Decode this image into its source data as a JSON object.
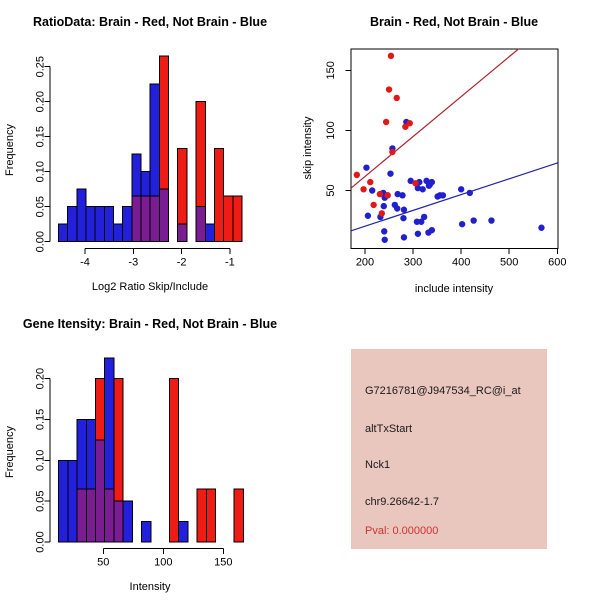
{
  "colors": {
    "background": "#FFFFFF",
    "bar_blue": "#2320DC",
    "bar_red": "#EE1C14",
    "bar_overlap_purple": "#7A1C92",
    "bar_border": "#000000",
    "point_blue": "#2020CC",
    "point_red": "#E01818",
    "line_red": "#B01F2E",
    "line_blue": "#2424A8",
    "axis": "#000000",
    "info_bg": "#E9C6BE",
    "info_text": "#1A1A1A",
    "pval_red": "#CC3333"
  },
  "chart_data": [
    {
      "id": "hist-ratio",
      "type": "bar",
      "title": "RatioData: Brain - Red, Not Brain - Blue",
      "xlabel": "Log2 Ratio Skip/Include",
      "ylabel": "Frequency",
      "x_ticks": [
        -4,
        -3,
        -2,
        -1
      ],
      "y_ticks": [
        "0.00",
        "0.05",
        "0.10",
        "0.15",
        "0.20",
        "0.25"
      ],
      "xlim": [
        -4.55,
        -0.75
      ],
      "ylim": [
        0,
        0.25
      ],
      "bin_start": -4.55,
      "bin_width": 0.19,
      "series": [
        {
          "name": "Not Brain (blue)",
          "values": [
            0.025,
            0.05,
            0.075,
            0.05,
            0.05,
            0.05,
            0.025,
            0.05,
            0.125,
            0.1,
            0.225,
            0.075,
            0,
            0.025,
            0,
            0.05,
            0.025,
            0,
            0,
            0
          ]
        },
        {
          "name": "Brain (red)",
          "values": [
            0,
            0,
            0,
            0,
            0,
            0,
            0,
            0,
            0.065,
            0.065,
            0.065,
            0.265,
            0,
            0.133,
            0,
            0.2,
            0,
            0.133,
            0.065,
            0.065
          ]
        }
      ],
      "note": "purple segments = overlap of red and blue histograms"
    },
    {
      "id": "scatter-intensity",
      "type": "scatter",
      "title": "Brain - Red, Not Brain - Blue",
      "xlabel": "include intensity",
      "ylabel": "skip intensity",
      "x_ticks": [
        200,
        300,
        400,
        500,
        600
      ],
      "y_ticks": [
        50,
        100,
        150
      ],
      "xlim": [
        171,
        601
      ],
      "ylim": [
        2,
        168
      ],
      "red_points": [
        [
          254,
          162
        ],
        [
          250,
          134
        ],
        [
          266,
          127
        ],
        [
          244,
          107
        ],
        [
          284,
          103
        ],
        [
          293,
          106
        ],
        [
          257,
          82
        ],
        [
          183,
          63
        ],
        [
          197,
          51
        ],
        [
          211,
          57
        ],
        [
          231,
          47
        ],
        [
          218,
          38
        ],
        [
          235,
          31
        ],
        [
          305,
          56
        ],
        [
          247,
          46
        ]
      ],
      "blue_points": [
        [
          203,
          69
        ],
        [
          253,
          64
        ],
        [
          286,
          107
        ],
        [
          257,
          85
        ],
        [
          215,
          50
        ],
        [
          238,
          48
        ],
        [
          241,
          44
        ],
        [
          247,
          46
        ],
        [
          268,
          47
        ],
        [
          278,
          46
        ],
        [
          239,
          37
        ],
        [
          267,
          35
        ],
        [
          281,
          34
        ],
        [
          206,
          29
        ],
        [
          310,
          52
        ],
        [
          320,
          51
        ],
        [
          333,
          54
        ],
        [
          356,
          46
        ],
        [
          295,
          58
        ],
        [
          313,
          57
        ],
        [
          328,
          58
        ],
        [
          335,
          55
        ],
        [
          262,
          38
        ],
        [
          232,
          28
        ],
        [
          280,
          27
        ],
        [
          308,
          24
        ],
        [
          317,
          24
        ],
        [
          323,
          28
        ],
        [
          240,
          16
        ],
        [
          241,
          9
        ],
        [
          281,
          11
        ],
        [
          310,
          14
        ],
        [
          332,
          15
        ],
        [
          339,
          57
        ],
        [
          351,
          45
        ],
        [
          362,
          46
        ],
        [
          400,
          51
        ],
        [
          418,
          48
        ],
        [
          402,
          22
        ],
        [
          426,
          25
        ],
        [
          463,
          25
        ],
        [
          567,
          19
        ],
        [
          339,
          17
        ]
      ],
      "red_line": {
        "x1": 171,
        "y1": 52,
        "x2": 520,
        "y2": 168
      },
      "blue_line": {
        "x1": 171,
        "y1": 16.5,
        "x2": 601,
        "y2": 73
      }
    },
    {
      "id": "hist-gene",
      "type": "bar",
      "title": "Gene Itensity: Brain - Red, Not Brain - Blue",
      "xlabel": "Intensity",
      "ylabel": "Frequency",
      "x_ticks": [
        50,
        100,
        150
      ],
      "y_ticks": [
        "0.00",
        "0.05",
        "0.10",
        "0.15",
        "0.20"
      ],
      "xlim": [
        12.7,
        166.7
      ],
      "ylim": [
        0,
        0.2
      ],
      "bin_start": 12.7,
      "bin_width": 7.7,
      "series": [
        {
          "name": "Not Brain (blue)",
          "values": [
            0.1,
            0.1,
            0.15,
            0.15,
            0.125,
            0.225,
            0.05,
            0.05,
            0,
            0.025,
            0,
            0,
            0,
            0.025,
            0,
            0,
            0,
            0,
            0,
            0
          ]
        },
        {
          "name": "Brain (red)",
          "values": [
            0,
            0,
            0.065,
            0.065,
            0.2,
            0.065,
            0.2,
            0,
            0,
            0,
            0,
            0,
            0.2,
            0,
            0,
            0.065,
            0.065,
            0,
            0,
            0.065
          ]
        }
      ],
      "note": "purple segments = overlap of red and blue histograms"
    }
  ],
  "info_panel": {
    "lines": [
      {
        "text": "G7216781@J947534_RC@i_at",
        "color": "black"
      },
      {
        "text": "altTxStart",
        "color": "black"
      },
      {
        "text": "Nck1",
        "color": "black"
      },
      {
        "text": "chr9.26642-1.7",
        "color": "black"
      },
      {
        "text": "Pval: 0.000000",
        "color": "red"
      }
    ]
  }
}
